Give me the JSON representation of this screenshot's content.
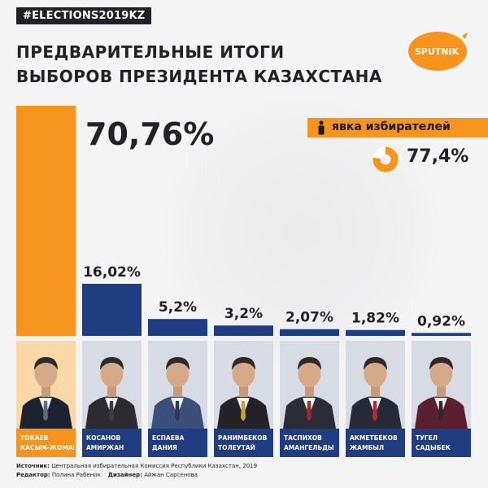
{
  "hashtag": "#ELECTIONS2019KZ",
  "title": {
    "line1": "ПРЕДВАРИТЕЛЬНЫЕ ИТОГИ",
    "line2": "ВЫБОРОВ ПРЕЗИДЕНТА КАЗАХСТАНА"
  },
  "logo_text": "SPUTNIK",
  "turnout": {
    "label": "явка избирателей",
    "value_label": "77,4%",
    "value": 77.4
  },
  "colors": {
    "accent": "#f7941d",
    "navy": "#203d82",
    "dark": "#222226",
    "background": "#f4f4f5"
  },
  "chart_data": {
    "type": "bar",
    "title": "ПРЕДВАРИТЕЛЬНЫЕ ИТОГИ ВЫБОРОВ ПРЕЗИДЕНТА КАЗАХСТАНА",
    "xlabel": "",
    "ylabel": "",
    "ylim": [
      0,
      70.76
    ],
    "categories": [
      "ТОКАЕВ КАСЫМ-ЖОМАРТ",
      "КОСАНОВ АМИРЖАН",
      "ЕСПАЕВА ДАНИЯ",
      "РАНИМБЕКОВ ТОЛЕУТАЙ",
      "ТАСПИХОВ АМАНГЕЛЬДЫ",
      "АКМЕТБЕКОВ ЖАМБЫЛ",
      "ТУГЕЛ САДЫБЕК"
    ],
    "values": [
      70.76,
      16.02,
      5.2,
      3.2,
      2.07,
      1.82,
      0.92
    ],
    "value_labels": [
      "70,76%",
      "16,02%",
      "5,2%",
      "3,2%",
      "2,07%",
      "1,82%",
      "0,92%"
    ],
    "grid": false,
    "legend": "none"
  },
  "candidates": [
    {
      "name_line1": "ТОКАЕВ",
      "name_line2": "КАСЫМ-ЖОМАРТ",
      "suit": "#1c2230",
      "tie": "#5a6a8a"
    },
    {
      "name_line1": "КОСАНОВ",
      "name_line2": "АМИРЖАН",
      "suit": "#2b2b30",
      "tie": "#3b3b44"
    },
    {
      "name_line1": "ЕСПАЕВА",
      "name_line2": "ДАНИЯ",
      "suit": "#3a4f7a",
      "tie": "#2a3a5c"
    },
    {
      "name_line1": "РАНИМБЕКОВ",
      "name_line2": "ТОЛЕУТАЙ",
      "suit": "#222228",
      "tie": "#c8a23a"
    },
    {
      "name_line1": "ТАСПИХОВ",
      "name_line2": "АМАНГЕЛЬДЫ",
      "suit": "#2a2d38",
      "tie": "#9a2a30"
    },
    {
      "name_line1": "АКМЕТБЕКОВ",
      "name_line2": "ЖАМБЫЛ",
      "suit": "#262a36",
      "tie": "#b42a34"
    },
    {
      "name_line1": "ТУГЕЛ",
      "name_line2": "САДЫБЕК",
      "suit": "#5a2030",
      "tie": "#2a2a30"
    }
  ],
  "footer": {
    "source_label": "Источник:",
    "source_text": "Центральная избирательная Комиссия Республики Казахстан, 2019",
    "editor_label": "Редактор:",
    "editor_name": "Полина Рабенок",
    "designer_label": "Дизайнер:",
    "designer_name": "Айжан Сарсенова"
  }
}
